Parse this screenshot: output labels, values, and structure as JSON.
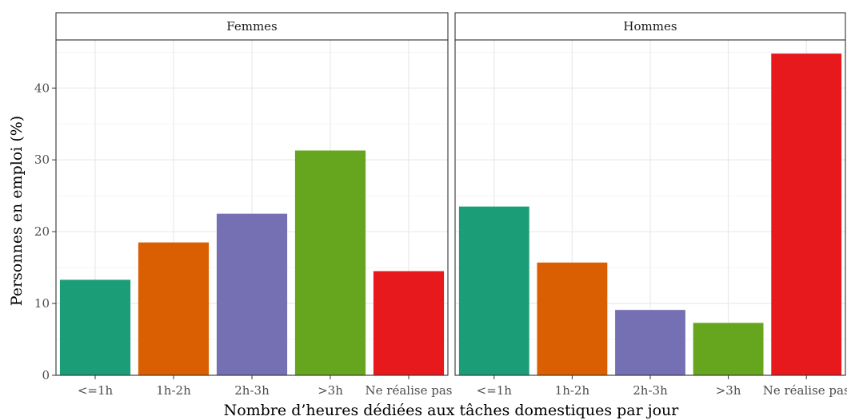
{
  "chart_data": {
    "type": "bar",
    "xlabel": "Nombre d’heures dédiées aux tâches domestiques par jour",
    "ylabel": "Personnes en emploi (%)",
    "categories": [
      "<=1h",
      "1h-2h",
      "2h-3h",
      ">3h",
      "Ne réalise pas"
    ],
    "colors": [
      "#1b9e77",
      "#d95f02",
      "#7570b3",
      "#66a61e",
      "#e7191c"
    ],
    "ylim": [
      0,
      46.7
    ],
    "yticks": [
      0,
      10,
      20,
      30,
      40
    ],
    "grid": true,
    "legend": "none",
    "facets": [
      {
        "name": "Femmes",
        "values": [
          13.3,
          18.5,
          22.5,
          31.3,
          14.5
        ]
      },
      {
        "name": "Hommes",
        "values": [
          23.5,
          15.7,
          9.1,
          7.3,
          44.8
        ]
      }
    ]
  }
}
